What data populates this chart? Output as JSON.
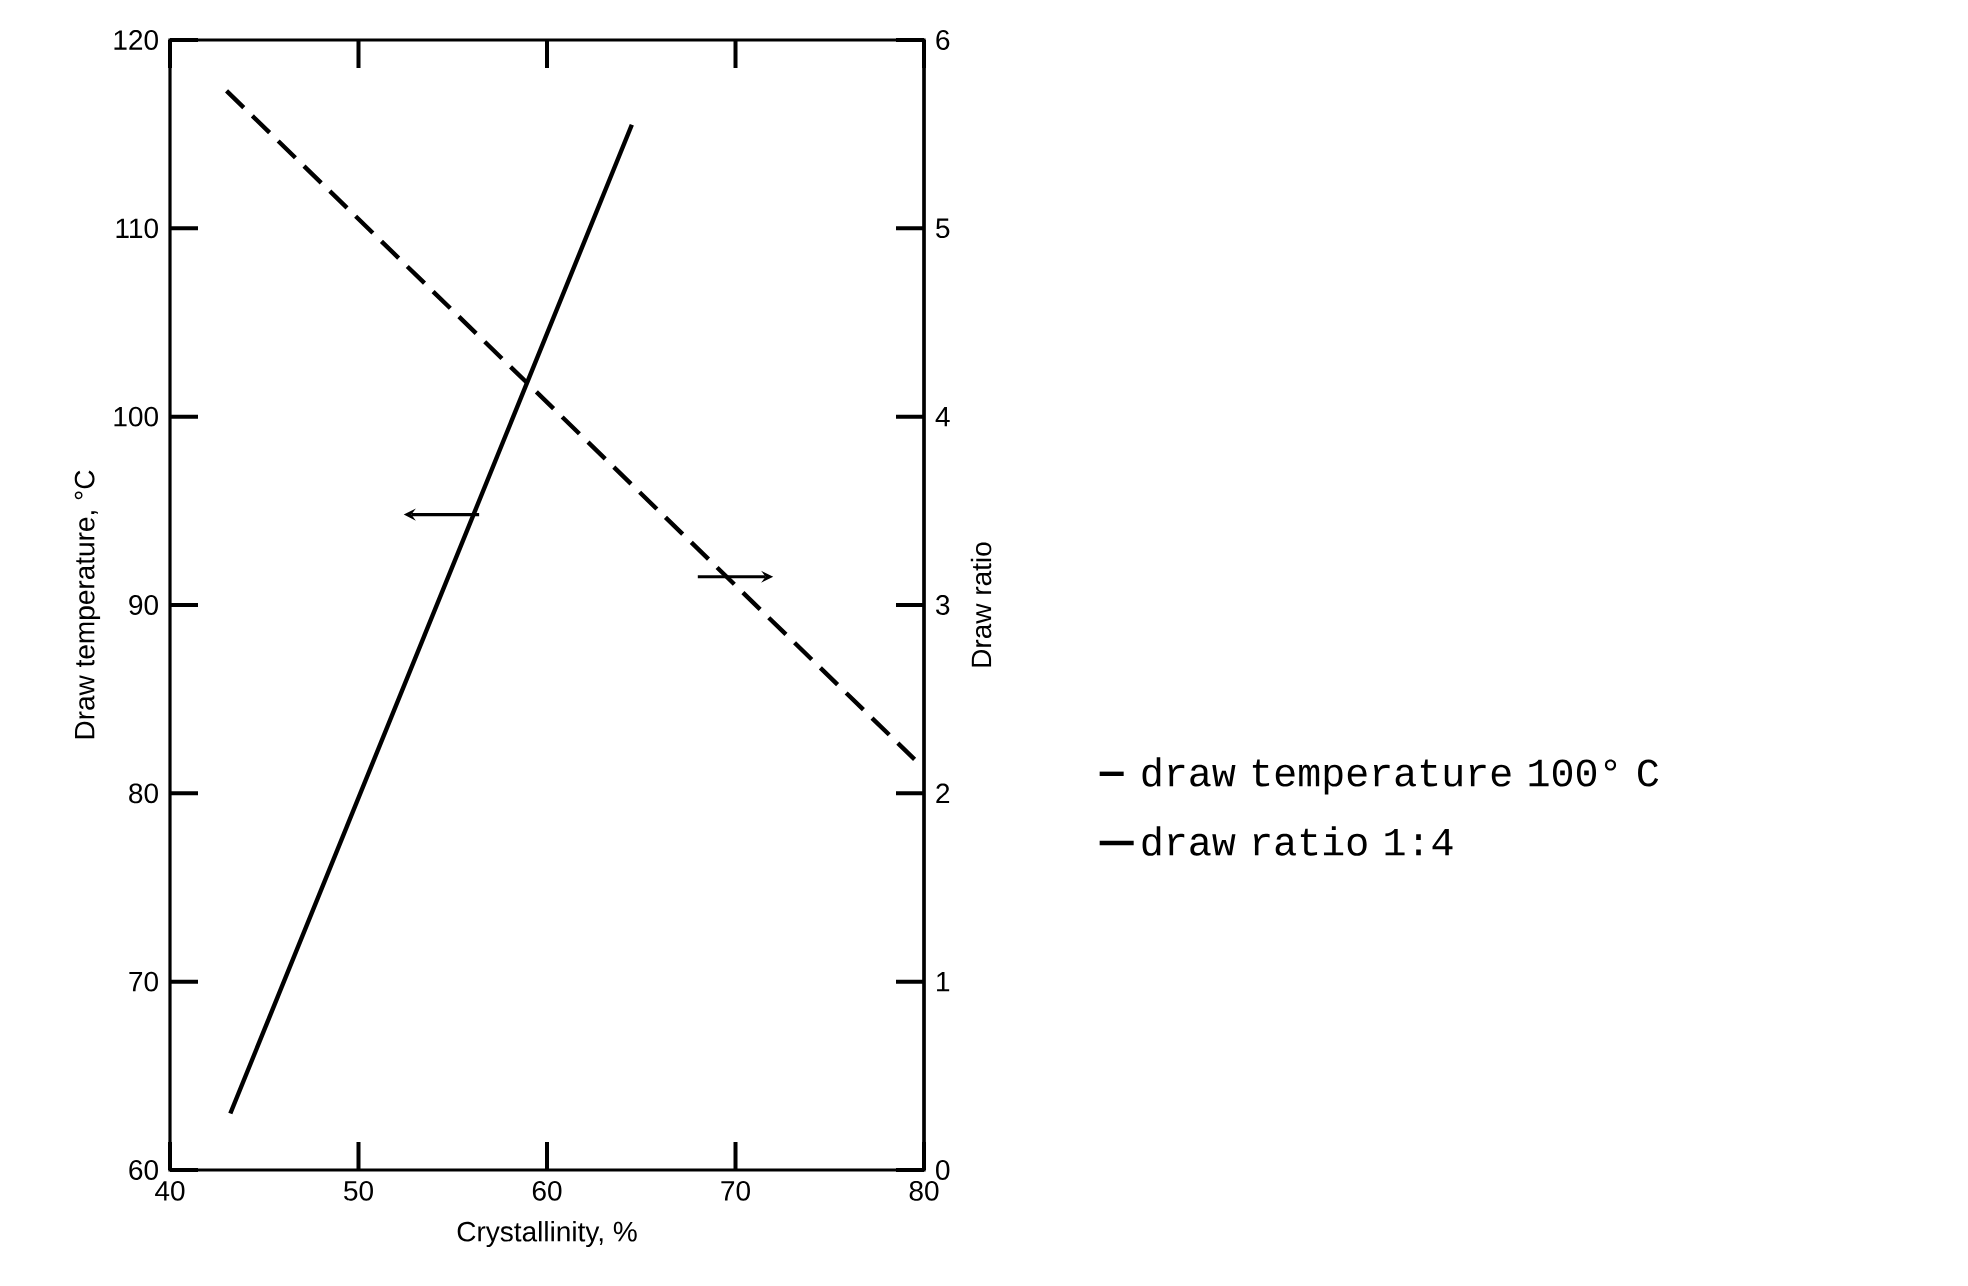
{
  "chart_data": {
    "type": "line",
    "xlabel": "Crystallinity, %",
    "ylabel": "Draw temperature, °C",
    "y2label": "Draw ratio",
    "xlim": [
      40,
      80
    ],
    "xticks": [
      40,
      50,
      60,
      70,
      80
    ],
    "ylim": [
      60,
      120
    ],
    "yticks": [
      60,
      70,
      80,
      90,
      100,
      110,
      120
    ],
    "y2lim": [
      0,
      6
    ],
    "y2ticks": [
      0,
      1,
      2,
      3,
      4,
      5,
      6
    ],
    "legend": "right",
    "grid": false,
    "marker": "none",
    "series": [
      {
        "name": "draw temperature 100° C",
        "color": "#000000",
        "axis": "y2",
        "line_style": "dashed",
        "x": [
          43,
          79.5
        ],
        "values": [
          5.73,
          2.18
        ]
      },
      {
        "name": "draw ratio 1:4",
        "color": "#000000",
        "line_style": "solid",
        "x": [
          43.2,
          64.5
        ],
        "values": [
          63,
          115.5
        ]
      }
    ]
  }
}
